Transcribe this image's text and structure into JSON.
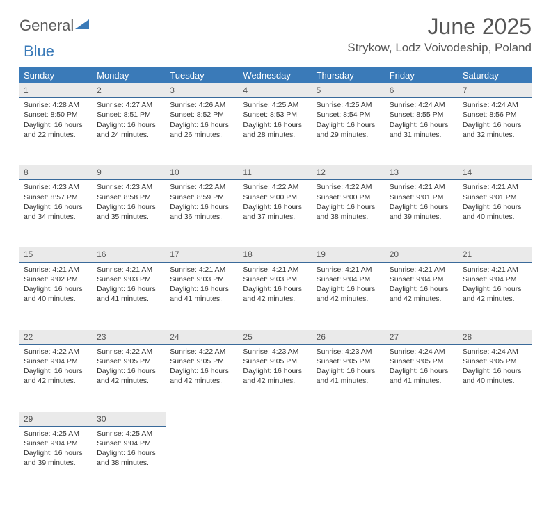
{
  "logo": {
    "general": "General",
    "blue": "Blue"
  },
  "title": "June 2025",
  "location": "Strykow, Lodz Voivodeship, Poland",
  "colors": {
    "header_bg": "#3a7ab8",
    "header_text": "#ffffff",
    "daynum_bg": "#eaeaea",
    "daynum_border": "#3a6a9a",
    "text": "#333333",
    "muted": "#555555"
  },
  "weekdays": [
    "Sunday",
    "Monday",
    "Tuesday",
    "Wednesday",
    "Thursday",
    "Friday",
    "Saturday"
  ],
  "days": [
    {
      "n": 1,
      "sr": "4:28 AM",
      "ss": "8:50 PM",
      "dl": "16 hours and 22 minutes."
    },
    {
      "n": 2,
      "sr": "4:27 AM",
      "ss": "8:51 PM",
      "dl": "16 hours and 24 minutes."
    },
    {
      "n": 3,
      "sr": "4:26 AM",
      "ss": "8:52 PM",
      "dl": "16 hours and 26 minutes."
    },
    {
      "n": 4,
      "sr": "4:25 AM",
      "ss": "8:53 PM",
      "dl": "16 hours and 28 minutes."
    },
    {
      "n": 5,
      "sr": "4:25 AM",
      "ss": "8:54 PM",
      "dl": "16 hours and 29 minutes."
    },
    {
      "n": 6,
      "sr": "4:24 AM",
      "ss": "8:55 PM",
      "dl": "16 hours and 31 minutes."
    },
    {
      "n": 7,
      "sr": "4:24 AM",
      "ss": "8:56 PM",
      "dl": "16 hours and 32 minutes."
    },
    {
      "n": 8,
      "sr": "4:23 AM",
      "ss": "8:57 PM",
      "dl": "16 hours and 34 minutes."
    },
    {
      "n": 9,
      "sr": "4:23 AM",
      "ss": "8:58 PM",
      "dl": "16 hours and 35 minutes."
    },
    {
      "n": 10,
      "sr": "4:22 AM",
      "ss": "8:59 PM",
      "dl": "16 hours and 36 minutes."
    },
    {
      "n": 11,
      "sr": "4:22 AM",
      "ss": "9:00 PM",
      "dl": "16 hours and 37 minutes."
    },
    {
      "n": 12,
      "sr": "4:22 AM",
      "ss": "9:00 PM",
      "dl": "16 hours and 38 minutes."
    },
    {
      "n": 13,
      "sr": "4:21 AM",
      "ss": "9:01 PM",
      "dl": "16 hours and 39 minutes."
    },
    {
      "n": 14,
      "sr": "4:21 AM",
      "ss": "9:01 PM",
      "dl": "16 hours and 40 minutes."
    },
    {
      "n": 15,
      "sr": "4:21 AM",
      "ss": "9:02 PM",
      "dl": "16 hours and 40 minutes."
    },
    {
      "n": 16,
      "sr": "4:21 AM",
      "ss": "9:03 PM",
      "dl": "16 hours and 41 minutes."
    },
    {
      "n": 17,
      "sr": "4:21 AM",
      "ss": "9:03 PM",
      "dl": "16 hours and 41 minutes."
    },
    {
      "n": 18,
      "sr": "4:21 AM",
      "ss": "9:03 PM",
      "dl": "16 hours and 42 minutes."
    },
    {
      "n": 19,
      "sr": "4:21 AM",
      "ss": "9:04 PM",
      "dl": "16 hours and 42 minutes."
    },
    {
      "n": 20,
      "sr": "4:21 AM",
      "ss": "9:04 PM",
      "dl": "16 hours and 42 minutes."
    },
    {
      "n": 21,
      "sr": "4:21 AM",
      "ss": "9:04 PM",
      "dl": "16 hours and 42 minutes."
    },
    {
      "n": 22,
      "sr": "4:22 AM",
      "ss": "9:04 PM",
      "dl": "16 hours and 42 minutes."
    },
    {
      "n": 23,
      "sr": "4:22 AM",
      "ss": "9:05 PM",
      "dl": "16 hours and 42 minutes."
    },
    {
      "n": 24,
      "sr": "4:22 AM",
      "ss": "9:05 PM",
      "dl": "16 hours and 42 minutes."
    },
    {
      "n": 25,
      "sr": "4:23 AM",
      "ss": "9:05 PM",
      "dl": "16 hours and 42 minutes."
    },
    {
      "n": 26,
      "sr": "4:23 AM",
      "ss": "9:05 PM",
      "dl": "16 hours and 41 minutes."
    },
    {
      "n": 27,
      "sr": "4:24 AM",
      "ss": "9:05 PM",
      "dl": "16 hours and 41 minutes."
    },
    {
      "n": 28,
      "sr": "4:24 AM",
      "ss": "9:05 PM",
      "dl": "16 hours and 40 minutes."
    },
    {
      "n": 29,
      "sr": "4:25 AM",
      "ss": "9:04 PM",
      "dl": "16 hours and 39 minutes."
    },
    {
      "n": 30,
      "sr": "4:25 AM",
      "ss": "9:04 PM",
      "dl": "16 hours and 38 minutes."
    }
  ],
  "labels": {
    "sunrise": "Sunrise:",
    "sunset": "Sunset:",
    "daylight": "Daylight:"
  }
}
